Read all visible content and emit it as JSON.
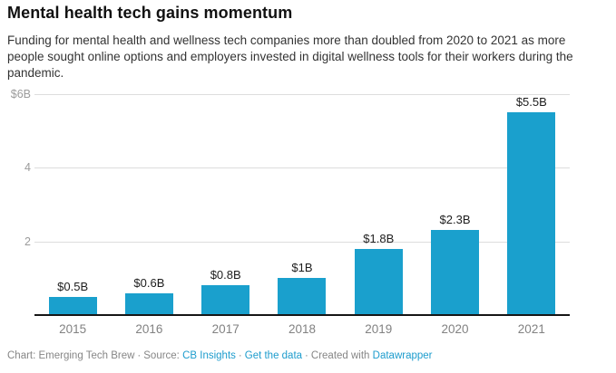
{
  "header": {
    "title": "Mental health tech gains momentum",
    "subtitle": "Funding for mental health and wellness tech companies more than doubled from 2020 to 2021 as more people sought online options and employers invested in digital wellness tools for their workers during the pandemic."
  },
  "chart_data": {
    "type": "bar",
    "title": "Mental health tech gains momentum",
    "categories": [
      "2015",
      "2016",
      "2017",
      "2018",
      "2019",
      "2020",
      "2021"
    ],
    "values": [
      0.5,
      0.6,
      0.8,
      1,
      1.8,
      2.3,
      5.5
    ],
    "value_labels": [
      "$0.5B",
      "$0.6B",
      "$0.8B",
      "$1B",
      "$1.8B",
      "$2.3B",
      "$5.5B"
    ],
    "xlabel": "",
    "ylabel": "",
    "ylim": [
      0,
      6
    ],
    "y_ticks": [
      {
        "value": 6,
        "label": "$6B"
      },
      {
        "value": 4,
        "label": "4"
      },
      {
        "value": 2,
        "label": "2"
      }
    ],
    "grid": true,
    "legend": "none",
    "bar_color": "#1aa0cd"
  },
  "footer": {
    "chart_credit": "Chart: Emerging Tech Brew",
    "separator": "·",
    "source_label": "Source:",
    "source_link": "CB Insights",
    "get_data_link": "Get the data",
    "created_with": "Created with",
    "tool_link": "Datawrapper"
  },
  "colors": {
    "bar": "#1aa0cd",
    "link": "#1d9ccd",
    "gridline": "#dddddd",
    "baseline": "#161616",
    "axis_text": "#9b9b9b",
    "x_axis_text": "#828282",
    "footer_text": "#868686"
  }
}
